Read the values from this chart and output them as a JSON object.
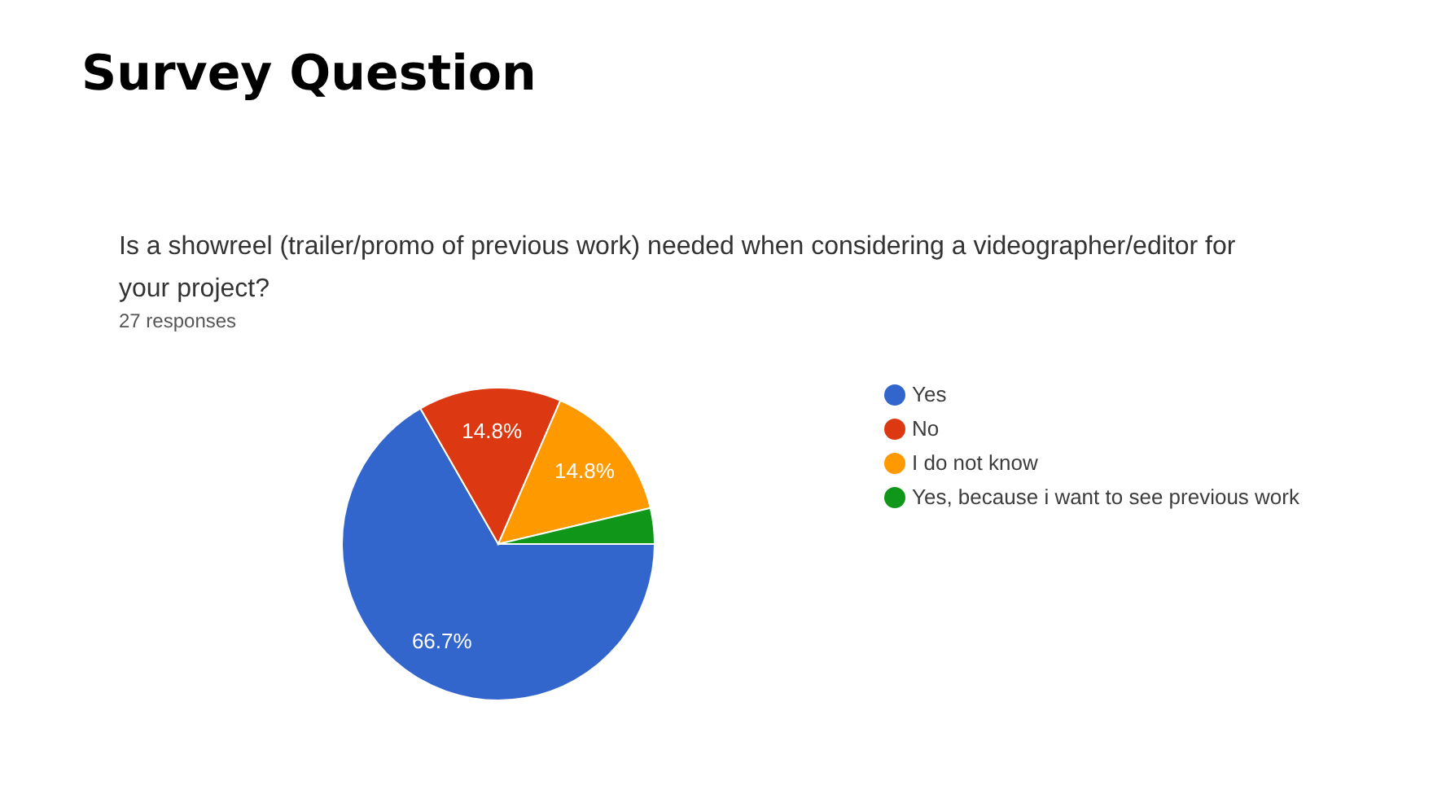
{
  "chart_data": {
    "type": "pie",
    "title": "Survey Question",
    "subtitle": "Is a showreel (trailer/promo of previous work) needed when considering a videographer/editor for your project?",
    "annotations": [
      "27 responses"
    ],
    "categories": [
      "Yes",
      "No",
      "I do not know",
      "Yes, because i want to see previous work"
    ],
    "values": [
      66.7,
      14.8,
      14.8,
      3.7
    ],
    "colors": [
      "#3366cc",
      "#dc3912",
      "#ff9900",
      "#109618"
    ],
    "value_labels": [
      "66.7%",
      "14.8%",
      "14.8%",
      null
    ],
    "legend": "right"
  }
}
